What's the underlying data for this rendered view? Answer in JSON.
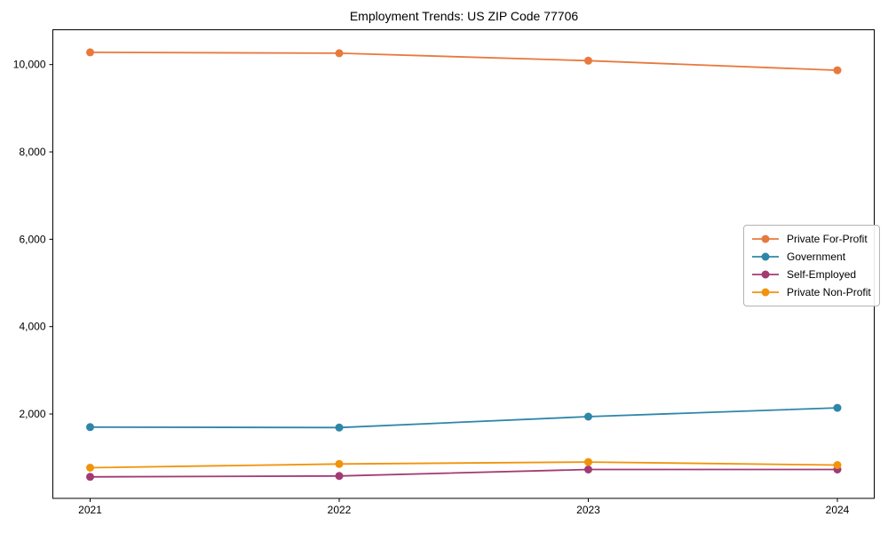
{
  "page": {
    "background": "#ffffff",
    "text_color": "#000000",
    "axis_color": "#000000"
  },
  "chart_data": {
    "type": "line",
    "title": "Employment Trends: US ZIP Code 77706",
    "xlabel": "",
    "ylabel": "",
    "categories": [
      "2021",
      "2022",
      "2023",
      "2024"
    ],
    "series": [
      {
        "name": "Private For-Profit",
        "color": "#e8793d",
        "marker": "circle",
        "values": [
          10280,
          10260,
          10090,
          9870
        ]
      },
      {
        "name": "Government",
        "color": "#2e86a8",
        "marker": "circle",
        "values": [
          1700,
          1690,
          1940,
          2140
        ]
      },
      {
        "name": "Self-Employed",
        "color": "#a23b72",
        "marker": "circle",
        "values": [
          560,
          580,
          730,
          730
        ]
      },
      {
        "name": "Private Non-Profit",
        "color": "#f1930b",
        "marker": "circle",
        "values": [
          770,
          855,
          900,
          830
        ]
      }
    ],
    "y_ticks": [
      {
        "value": 2000,
        "label": "2,000"
      },
      {
        "value": 4000,
        "label": "4,000"
      },
      {
        "value": 6000,
        "label": "6,000"
      },
      {
        "value": 8000,
        "label": "8,000"
      },
      {
        "value": 10000,
        "label": "10,000"
      }
    ],
    "ylim": [
      68,
      10797
    ],
    "grid": false,
    "legend_position": "center right",
    "legend_border_color": "#b4b4b4"
  }
}
